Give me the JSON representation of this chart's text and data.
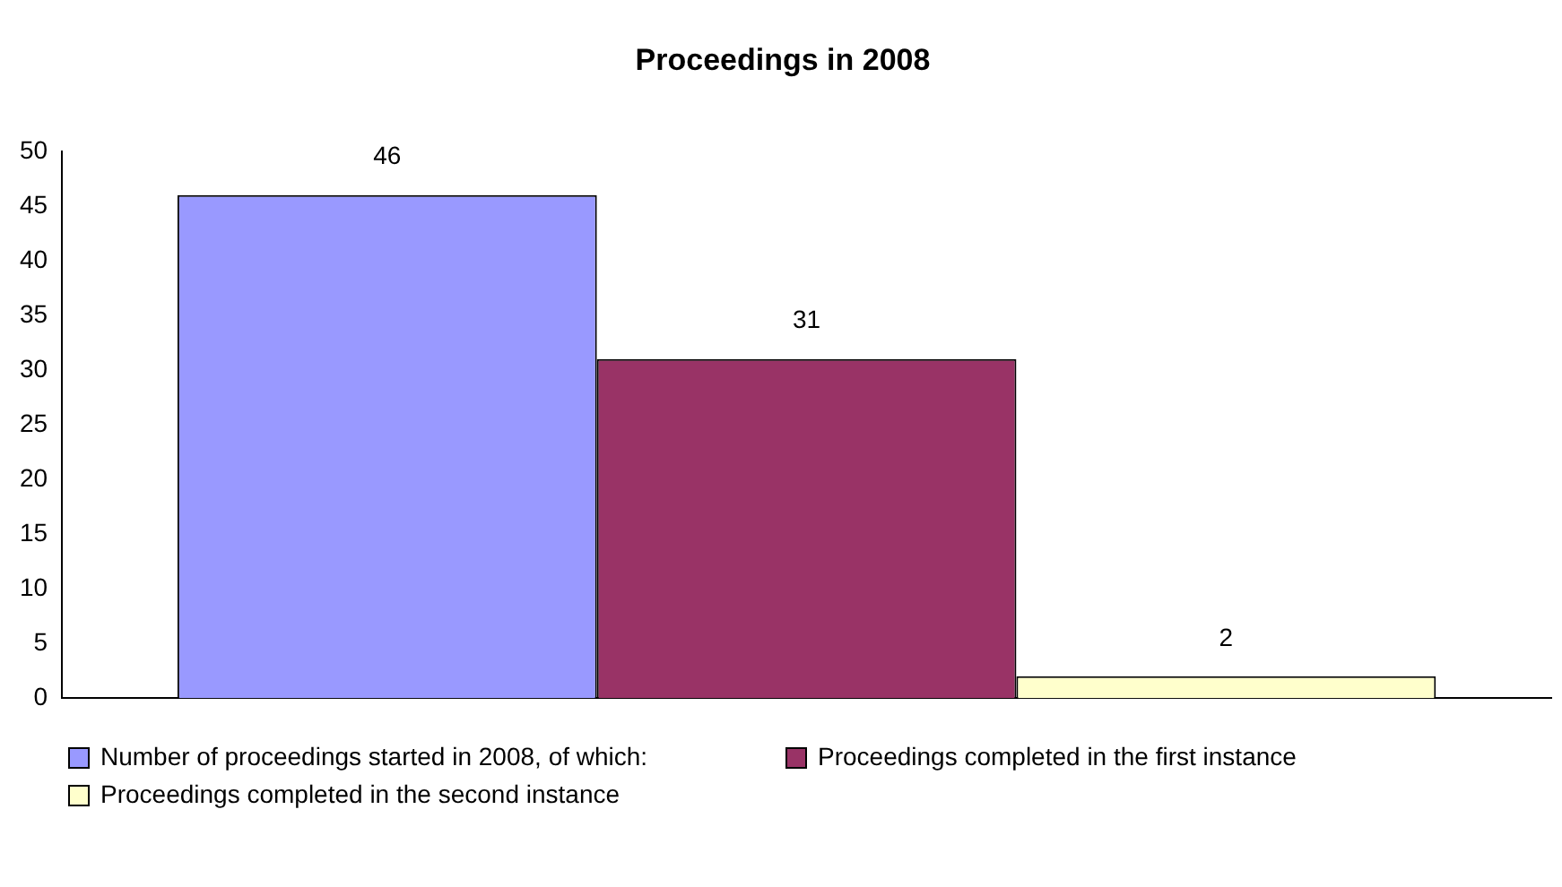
{
  "chart_data": {
    "type": "bar",
    "title": "Proceedings in 2008",
    "categories": [
      null
    ],
    "series": [
      {
        "name": "Number of proceedings started in 2008, of which:",
        "color": "#9999ff",
        "values": [
          46
        ]
      },
      {
        "name": "Proceedings completed in the first instance",
        "color": "#993366",
        "values": [
          31
        ]
      },
      {
        "name": "Proceedings completed in the second instance",
        "color": "#ffffcc",
        "values": [
          2
        ]
      }
    ],
    "ylim": [
      0,
      50
    ],
    "yticks": [
      0,
      5,
      10,
      15,
      20,
      25,
      30,
      35,
      40,
      45,
      50
    ],
    "grid": false,
    "legend": "bottom",
    "data_labels": true
  }
}
